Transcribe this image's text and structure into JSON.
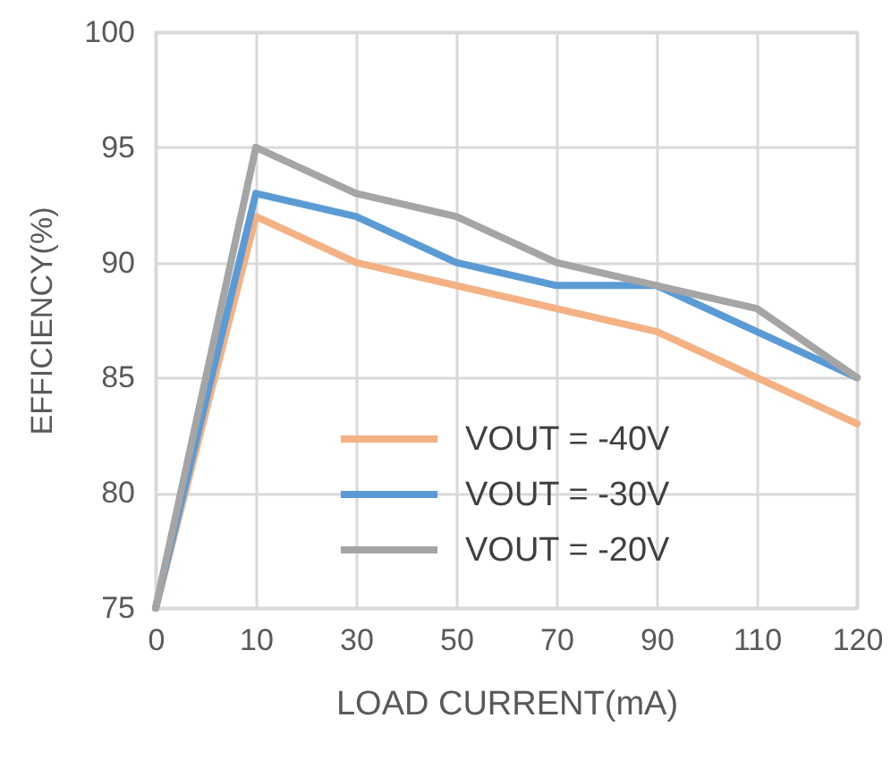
{
  "chart_data": {
    "type": "line",
    "xlabel": "LOAD CURRENT(mA)",
    "ylabel": "EFFICIENCY(%)",
    "categories": [
      "0",
      "10",
      "30",
      "50",
      "70",
      "90",
      "110",
      "120"
    ],
    "series": [
      {
        "name": "VOUT = -40V",
        "color": "#f4b183",
        "values": [
          75,
          92,
          90,
          89,
          88,
          87,
          85,
          83
        ]
      },
      {
        "name": "VOUT = -30V",
        "color": "#5b9bd5",
        "values": [
          75,
          93,
          92,
          90,
          89,
          89,
          87,
          85
        ]
      },
      {
        "name": "VOUT = -20V",
        "color": "#a5a5a5",
        "values": [
          75,
          95,
          93,
          92,
          90,
          89,
          88,
          85
        ]
      }
    ],
    "ylim": [
      75,
      100
    ],
    "yticks": [
      75,
      80,
      85,
      90,
      95,
      100
    ],
    "grid": true,
    "legend": "bottom left",
    "marker": "none",
    "line_style": "solid"
  }
}
